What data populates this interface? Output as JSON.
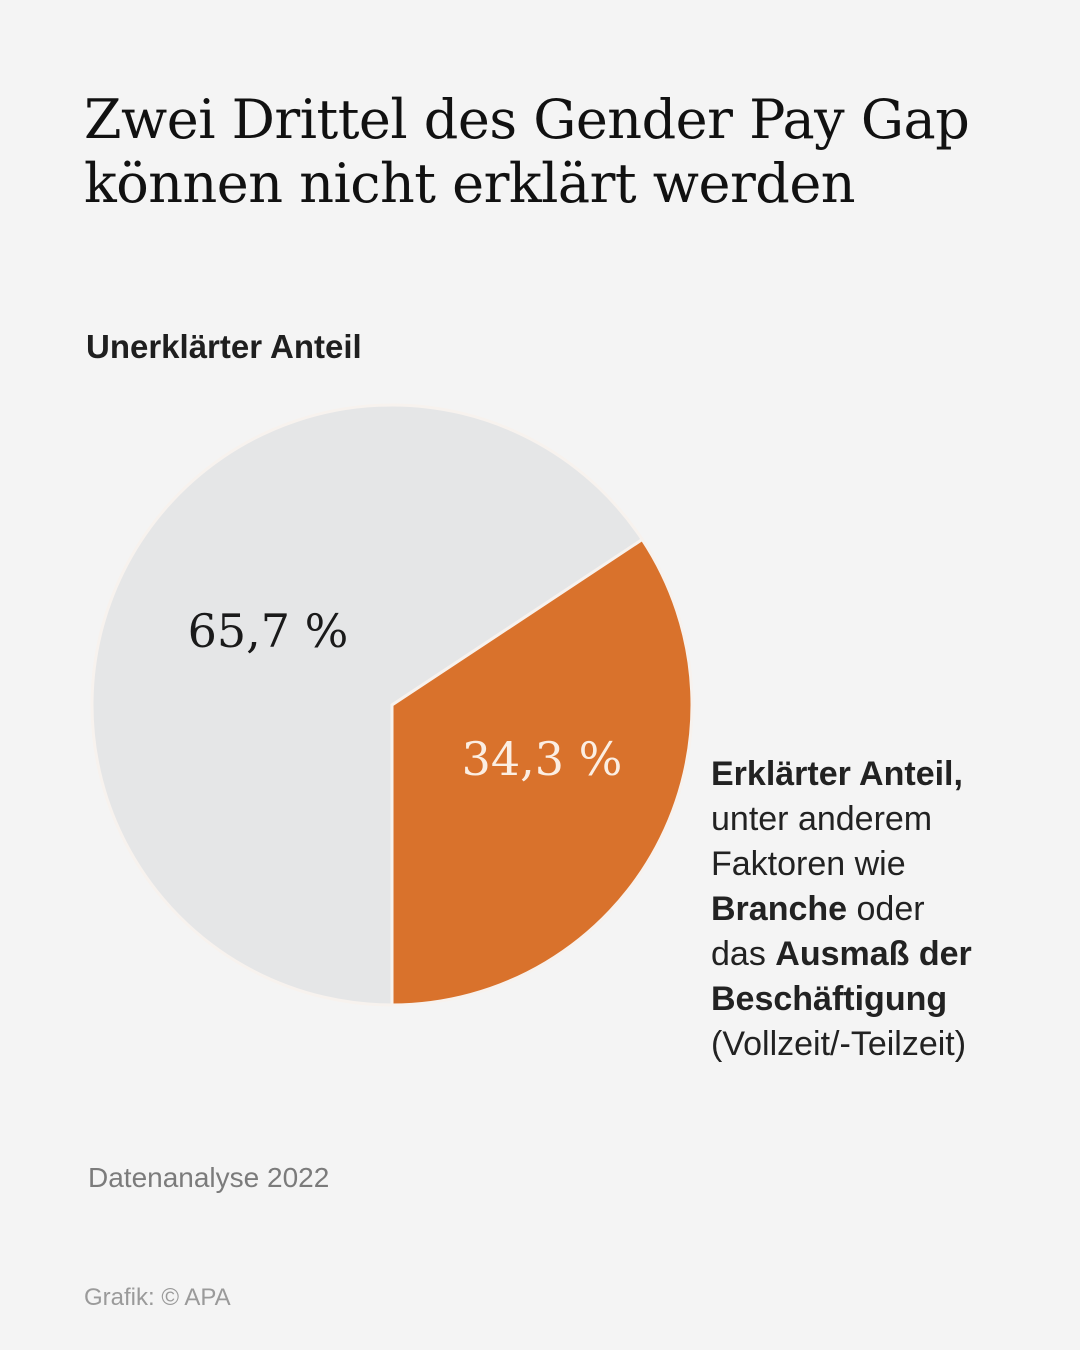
{
  "title": {
    "line1": "Zwei Drittel des Gender Pay Gap",
    "line2": "können nicht erklärt werden"
  },
  "chart_data": {
    "type": "pie",
    "title": "Zwei Drittel des Gender Pay Gap können nicht erklärt werden",
    "unit": "%",
    "slices": [
      {
        "name": "Unerklärter Anteil",
        "value": 65.7,
        "label": "65,7 %",
        "color": "#e5e6e7",
        "label_color": "#1a1a1a"
      },
      {
        "name": "Erklärter Anteil",
        "value": 34.3,
        "label": "34,3 %",
        "color": "#d9722c",
        "label_color": "#fbeee3"
      }
    ]
  },
  "labels": {
    "unexplained": "Unerklärter Anteil",
    "explained": {
      "line1_bold": "Erklärter Anteil,",
      "line2": "unter anderem",
      "line3": "Faktoren wie",
      "line4_bold": "Branche",
      "line4_rest": " oder",
      "line5_pre": "das ",
      "line5_bold": "Ausmaß der",
      "line6_bold": "Beschäftigung",
      "line7": "(Vollzeit/-Teilzeit)"
    }
  },
  "footer": {
    "source": "Datenanalyse 2022",
    "credit": "Grafik: © APA"
  }
}
